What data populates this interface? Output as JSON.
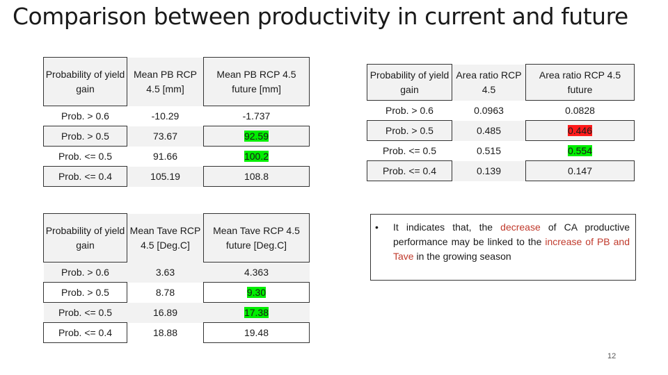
{
  "slide": {
    "title": "Comparison between productivity in current and future",
    "page_number": "12"
  },
  "table_pb": {
    "headers": [
      "Probability of yield gain",
      "Mean PB RCP 4.5 [mm]",
      "Mean PB RCP 4.5 future [mm]"
    ],
    "rows": [
      [
        "Prob. > 0.6",
        "-10.29",
        "-1.737"
      ],
      [
        "Prob.  > 0.5",
        "73.67",
        "92.59"
      ],
      [
        "Prob.  <= 0.5",
        "91.66",
        "100.2"
      ],
      [
        "Prob.  <= 0.4",
        "105.19",
        "108.8"
      ]
    ]
  },
  "table_area": {
    "headers": [
      "Probability of yield gain",
      "Area ratio RCP 4.5",
      "Area ratio RCP 4.5 future"
    ],
    "rows": [
      [
        "Prob. > 0.6",
        "0.0963",
        "0.0828"
      ],
      [
        "Prob.  > 0.5",
        "0.485",
        "0.446"
      ],
      [
        "Prob.  <= 0.5",
        "0.515",
        "0.554"
      ],
      [
        "Prob.  <= 0.4",
        "0.139",
        "0.147"
      ]
    ]
  },
  "table_tave": {
    "headers": [
      "Probability of yield gain",
      "Mean Tave RCP 4.5 [Deg.C]",
      "Mean Tave RCP 4.5 future [Deg.C]"
    ],
    "rows": [
      [
        "Prob. > 0.6",
        "3.63",
        "4.363"
      ],
      [
        "Prob.  > 0.5",
        "8.78",
        "9.30"
      ],
      [
        "Prob.  <= 0.5",
        "16.89",
        "17.38"
      ],
      [
        "Prob.  <= 0.4",
        "18.88",
        "19.48"
      ]
    ]
  },
  "note": {
    "bullet": "•",
    "part1": "It indicates that, the ",
    "decrease": "decrease",
    "part2": " of CA productive performance may be linked to the ",
    "increase": "increase of PB and Tave",
    "part3": " in the growing season"
  },
  "colors": {
    "highlight_green": "#00ee00",
    "highlight_red": "#ff1a1a",
    "emphasis_red": "#c0392b",
    "header_fill": "#f2f2f2"
  }
}
